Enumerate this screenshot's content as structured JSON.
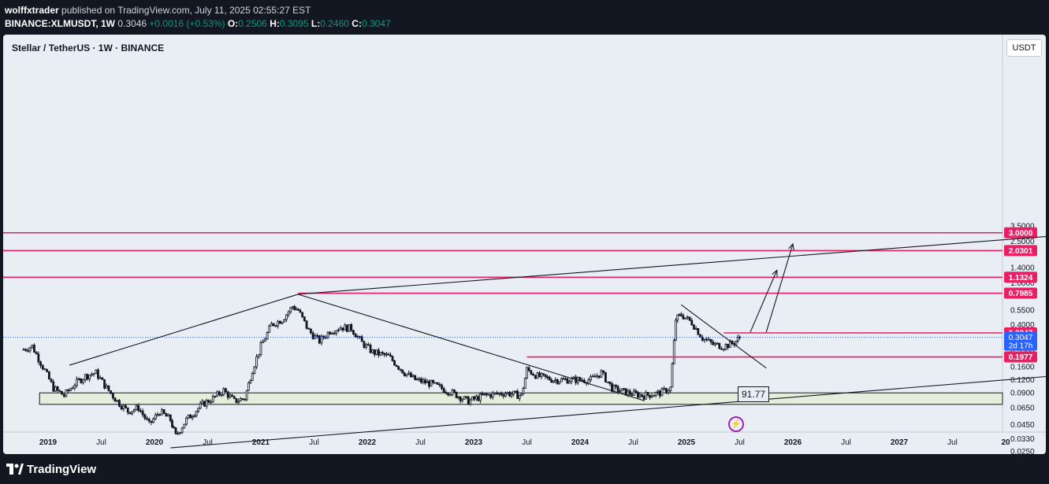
{
  "header": {
    "author": "wolffxtrader",
    "published_text": "published on TradingView.com, July 11, 2025 02:55:27 EST",
    "symbol_line": "BINANCE:XLMUSDT, 1W",
    "last": "0.3046",
    "change": "+0.0016 (+0.53%)",
    "o_label": "O:",
    "o_value": "0.2506",
    "h_label": "H:",
    "h_value": "0.3095",
    "l_label": "L:",
    "l_value": "0.2460",
    "c_label": "C:",
    "c_value": "0.3047"
  },
  "chart": {
    "title": "Stellar / TetherUS · 1W · BINANCE",
    "currency": "USDT",
    "annotation_value": "91.77",
    "event_icon": "lightning-icon",
    "colors": {
      "level_line": "#e91e63",
      "candle": "#131722",
      "background": "#e9eef5",
      "zone": "#e4eedd",
      "price_tag": "#2962ff"
    }
  },
  "chart_data": {
    "type": "candlestick",
    "scale": "log",
    "y_ticks": [
      "3.5000",
      "3.0000",
      "2.5000",
      "2.0301",
      "1.4000",
      "1.1324",
      "1.0000",
      "0.7985",
      "0.5500",
      "0.4000",
      "0.3347",
      "0.2200",
      "0.1977",
      "0.1600",
      "0.1200",
      "0.0900",
      "0.0650",
      "0.0450",
      "0.0330",
      "0.0250"
    ],
    "x_ticks": [
      "2019",
      "Jul",
      "2020",
      "Jul",
      "2021",
      "Jul",
      "2022",
      "Jul",
      "2023",
      "Jul",
      "2024",
      "Jul",
      "2025",
      "Jul",
      "2026",
      "Jul",
      "2027",
      "Jul",
      "20"
    ],
    "levels": [
      {
        "label": "3.0000",
        "value": 3.0
      },
      {
        "label": "2.0301",
        "value": 2.0301
      },
      {
        "label": "1.1324",
        "value": 1.1324
      },
      {
        "label": "0.7985",
        "value": 0.7985
      },
      {
        "label": "0.3347",
        "value": 0.3347
      },
      {
        "label": "0.1977",
        "value": 0.1977
      }
    ],
    "current_price": {
      "label": "0.3047",
      "countdown": "2d 17h"
    },
    "support_zone": {
      "low": 0.07,
      "high": 0.09
    },
    "weekly_closes": [
      {
        "t": 2018.75,
        "c": 0.23
      },
      {
        "t": 2018.85,
        "c": 0.25
      },
      {
        "t": 2018.95,
        "c": 0.16
      },
      {
        "t": 2019.05,
        "c": 0.1
      },
      {
        "t": 2019.15,
        "c": 0.085
      },
      {
        "t": 2019.25,
        "c": 0.11
      },
      {
        "t": 2019.35,
        "c": 0.13
      },
      {
        "t": 2019.45,
        "c": 0.14
      },
      {
        "t": 2019.55,
        "c": 0.1
      },
      {
        "t": 2019.65,
        "c": 0.075
      },
      {
        "t": 2019.75,
        "c": 0.06
      },
      {
        "t": 2019.85,
        "c": 0.065
      },
      {
        "t": 2019.95,
        "c": 0.045
      },
      {
        "t": 2020.05,
        "c": 0.06
      },
      {
        "t": 2020.15,
        "c": 0.05
      },
      {
        "t": 2020.2,
        "c": 0.035
      },
      {
        "t": 2020.3,
        "c": 0.05
      },
      {
        "t": 2020.45,
        "c": 0.07
      },
      {
        "t": 2020.55,
        "c": 0.08
      },
      {
        "t": 2020.65,
        "c": 0.095
      },
      {
        "t": 2020.75,
        "c": 0.075
      },
      {
        "t": 2020.85,
        "c": 0.08
      },
      {
        "t": 2020.92,
        "c": 0.15
      },
      {
        "t": 2021.0,
        "c": 0.25
      },
      {
        "t": 2021.1,
        "c": 0.4
      },
      {
        "t": 2021.2,
        "c": 0.45
      },
      {
        "t": 2021.3,
        "c": 0.6
      },
      {
        "t": 2021.35,
        "c": 0.55
      },
      {
        "t": 2021.45,
        "c": 0.35
      },
      {
        "t": 2021.55,
        "c": 0.28
      },
      {
        "t": 2021.65,
        "c": 0.35
      },
      {
        "t": 2021.75,
        "c": 0.38
      },
      {
        "t": 2021.85,
        "c": 0.37
      },
      {
        "t": 2021.95,
        "c": 0.27
      },
      {
        "t": 2022.05,
        "c": 0.22
      },
      {
        "t": 2022.2,
        "c": 0.2
      },
      {
        "t": 2022.35,
        "c": 0.14
      },
      {
        "t": 2022.45,
        "c": 0.12
      },
      {
        "t": 2022.6,
        "c": 0.11
      },
      {
        "t": 2022.8,
        "c": 0.09
      },
      {
        "t": 2022.95,
        "c": 0.075
      },
      {
        "t": 2023.1,
        "c": 0.085
      },
      {
        "t": 2023.3,
        "c": 0.09
      },
      {
        "t": 2023.45,
        "c": 0.085
      },
      {
        "t": 2023.5,
        "c": 0.15
      },
      {
        "t": 2023.6,
        "c": 0.13
      },
      {
        "t": 2023.75,
        "c": 0.12
      },
      {
        "t": 2023.9,
        "c": 0.12
      },
      {
        "t": 2024.1,
        "c": 0.12
      },
      {
        "t": 2024.2,
        "c": 0.14
      },
      {
        "t": 2024.3,
        "c": 0.1
      },
      {
        "t": 2024.45,
        "c": 0.09
      },
      {
        "t": 2024.6,
        "c": 0.085
      },
      {
        "t": 2024.75,
        "c": 0.09
      },
      {
        "t": 2024.85,
        "c": 0.1
      },
      {
        "t": 2024.9,
        "c": 0.45
      },
      {
        "t": 2024.95,
        "c": 0.5
      },
      {
        "t": 2025.05,
        "c": 0.42
      },
      {
        "t": 2025.15,
        "c": 0.3
      },
      {
        "t": 2025.25,
        "c": 0.26
      },
      {
        "t": 2025.35,
        "c": 0.25
      },
      {
        "t": 2025.45,
        "c": 0.27
      },
      {
        "t": 2025.5,
        "c": 0.3047
      }
    ]
  }
}
